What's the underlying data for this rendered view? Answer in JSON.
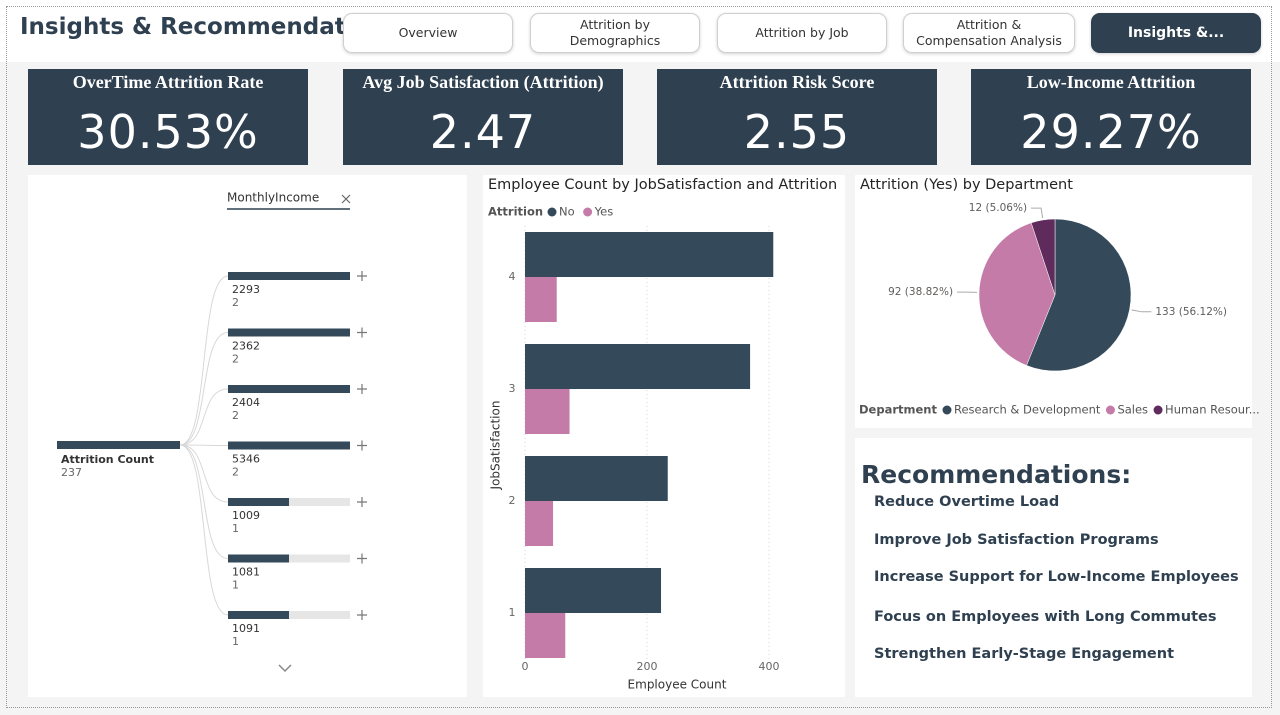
{
  "header": {
    "title": "Insights & Recommendation",
    "tabs": [
      "Overview",
      "Attrition by Demographics",
      "Attrition by Job",
      "Attrition & Compensation Analysis",
      "Insights &..."
    ]
  },
  "kpis": [
    {
      "title": "OverTime Attrition Rate",
      "value": "30.53%"
    },
    {
      "title": "Avg Job Satisfaction (Attrition)",
      "value": "2.47"
    },
    {
      "title": "Attrition Risk Score",
      "value": "2.55"
    },
    {
      "title": "Low-Income Attrition",
      "value": "29.27%"
    }
  ],
  "decomposition_tree": {
    "level": "MonthlyIncome",
    "root": {
      "label": "Attrition Count",
      "value": 237
    },
    "nodes": [
      {
        "label": "2293",
        "value": 2
      },
      {
        "label": "2362",
        "value": 2
      },
      {
        "label": "2404",
        "value": 2
      },
      {
        "label": "5346",
        "value": 2
      },
      {
        "label": "1009",
        "value": 1
      },
      {
        "label": "1081",
        "value": 1
      },
      {
        "label": "1091",
        "value": 1
      }
    ]
  },
  "chart_data": [
    {
      "type": "bar",
      "orientation": "horizontal",
      "title": "Employee Count by JobSatisfaction and Attrition",
      "legend_title": "Attrition",
      "x_label": "Employee Count",
      "y_label": "JobSatisfaction",
      "categories": [
        "4",
        "3",
        "2",
        "1"
      ],
      "series": [
        {
          "name": "No",
          "color": "#34495a",
          "values": [
            407,
            369,
            234,
            223
          ]
        },
        {
          "name": "Yes",
          "color": "#c47ba8",
          "values": [
            52,
            73,
            46,
            66
          ]
        }
      ],
      "xlim": [
        0,
        500
      ],
      "xticks": [
        0,
        200,
        400
      ],
      "grid": true
    },
    {
      "type": "pie",
      "title": "Attrition (Yes) by Department",
      "legend_title": "Department",
      "categories": [
        "Research & Development",
        "Sales",
        "Human Resour..."
      ],
      "values": [
        133,
        92,
        12
      ],
      "value_labels": [
        "133 (56.12%)",
        "92 (38.82%)",
        "12 (5.06%)"
      ],
      "colors": [
        "#34495a",
        "#c47ba8",
        "#5e2b5c"
      ]
    }
  ],
  "recommendations": {
    "title": "Recommendations:",
    "items": [
      "Reduce Overtime Load",
      "Improve Job Satisfaction Programs",
      "Increase Support for Low-Income Employees",
      "Focus on Employees with Long Commutes",
      "Strengthen Early-Stage Engagement"
    ]
  }
}
